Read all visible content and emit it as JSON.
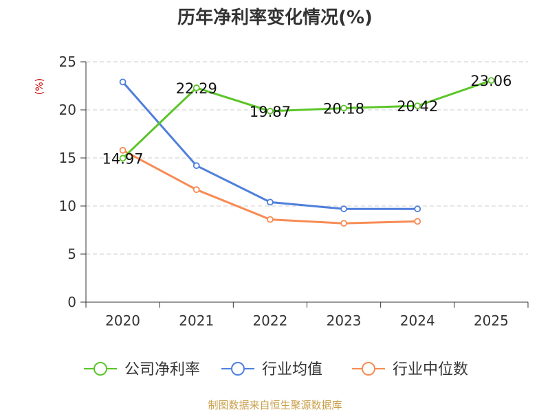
{
  "chart_data": {
    "type": "line",
    "title": "历年净利率变化情况(%)",
    "ylabel": "(%)",
    "categories": [
      "2020",
      "2021",
      "2022",
      "2023",
      "2024",
      "2025"
    ],
    "ylim": [
      0,
      25
    ],
    "yticks": [
      "0",
      "5",
      "10",
      "15",
      "20",
      "25"
    ],
    "grid": "horizontal dashed",
    "legend_position": "bottom",
    "series": [
      {
        "name": "公司净利率",
        "color": "#5bc528",
        "values": [
          14.97,
          22.29,
          19.87,
          20.18,
          20.42,
          23.06
        ],
        "labels": [
          "14.97",
          "22.29",
          "19.87",
          "20.18",
          "20.42",
          "23.06"
        ]
      },
      {
        "name": "行业均值",
        "color": "#4e7fdc",
        "values": [
          22.9,
          14.2,
          10.4,
          9.7,
          9.7,
          null
        ],
        "labels": []
      },
      {
        "name": "行业中位数",
        "color": "#f78b54",
        "values": [
          15.8,
          11.7,
          8.6,
          8.2,
          8.4,
          null
        ],
        "labels": []
      }
    ],
    "source": "制图数据来自恒生聚源数据库"
  }
}
